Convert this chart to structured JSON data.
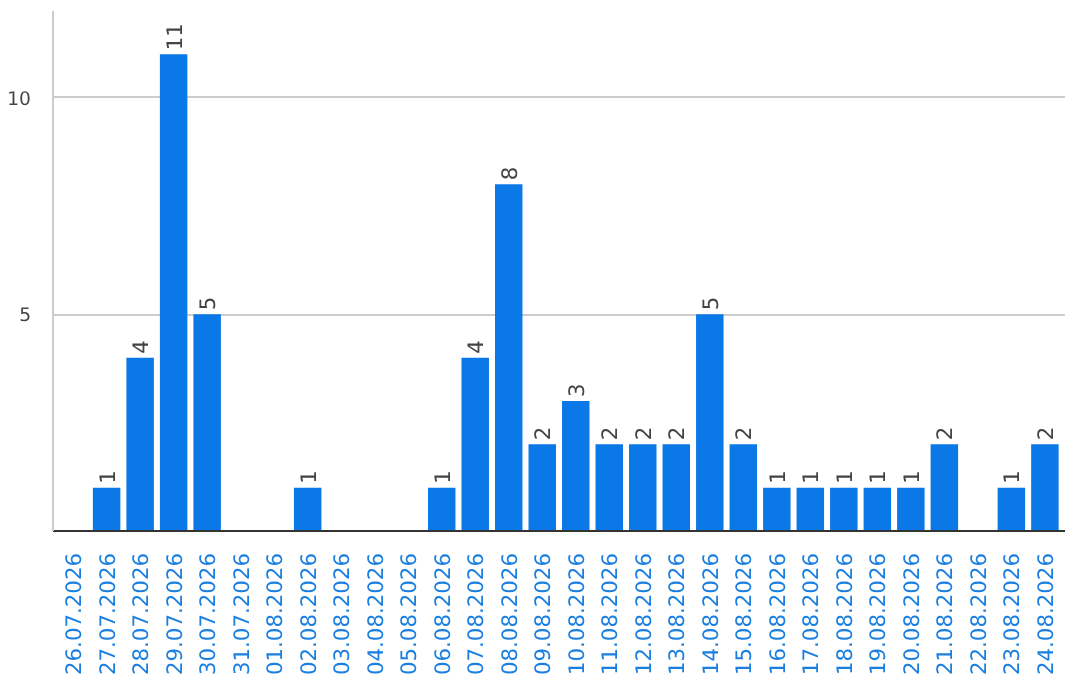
{
  "chart_data": {
    "type": "bar",
    "categories": [
      "26.07.2026",
      "27.07.2026",
      "28.07.2026",
      "29.07.2026",
      "30.07.2026",
      "31.07.2026",
      "01.08.2026",
      "02.08.2026",
      "03.08.2026",
      "04.08.2026",
      "05.08.2026",
      "06.08.2026",
      "07.08.2026",
      "08.08.2026",
      "09.08.2026",
      "10.08.2026",
      "11.08.2026",
      "12.08.2026",
      "13.08.2026",
      "14.08.2026",
      "15.08.2026",
      "16.08.2026",
      "17.08.2026",
      "18.08.2026",
      "19.08.2026",
      "20.08.2026",
      "21.08.2026",
      "22.08.2026",
      "23.08.2026",
      "24.08.2026"
    ],
    "values": [
      0,
      1,
      4,
      11,
      5,
      0,
      0,
      1,
      0,
      0,
      0,
      1,
      4,
      8,
      2,
      3,
      2,
      2,
      2,
      5,
      2,
      1,
      1,
      1,
      1,
      1,
      2,
      0,
      1,
      2
    ],
    "value_labels": [
      null,
      "1",
      "4",
      "11",
      "5",
      null,
      null,
      "1",
      null,
      null,
      null,
      "1",
      "4",
      "8",
      "2",
      "3",
      "2",
      "2",
      "2",
      "5",
      "2",
      "1",
      "1",
      "1",
      "1",
      "1",
      "2",
      null,
      "1",
      "2"
    ],
    "color": "#0a78e6",
    "ylim": [
      0,
      12
    ],
    "yticks": [
      5,
      10
    ],
    "grid": "y"
  }
}
